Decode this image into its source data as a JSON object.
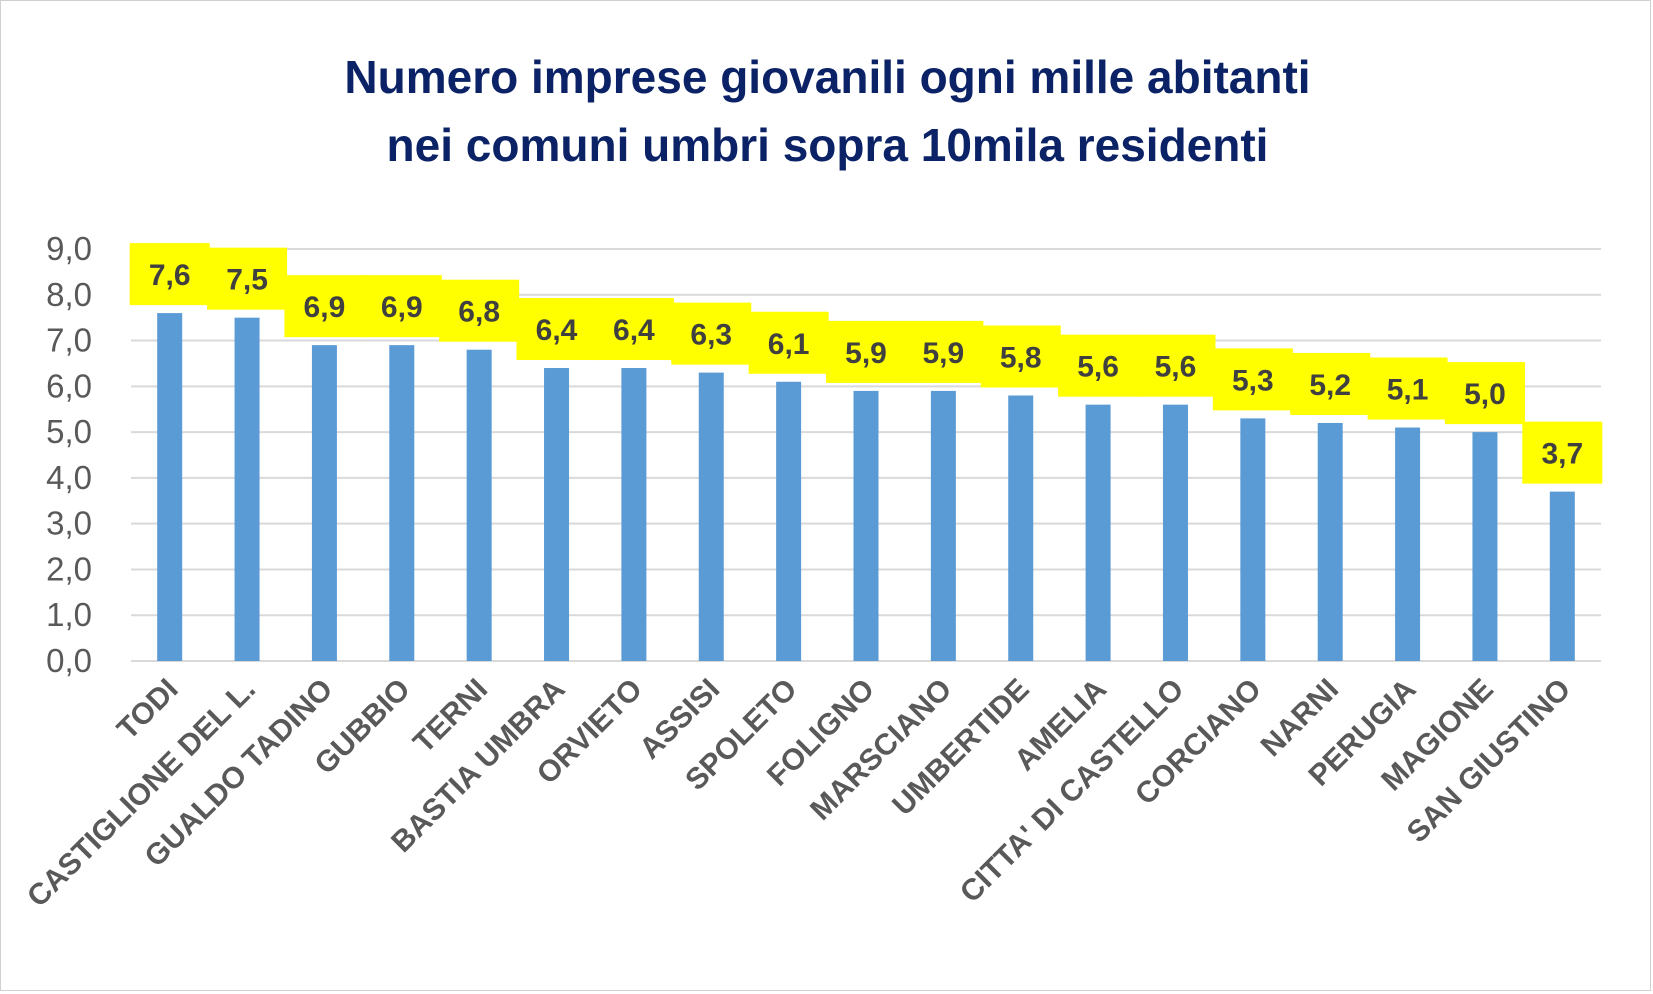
{
  "chart_data": {
    "type": "bar",
    "title_lines": [
      "Numero imprese giovanili ogni mille abitanti",
      "nei comuni umbri sopra 10mila residenti"
    ],
    "xlabel": "",
    "ylabel": "",
    "ylim": [
      0,
      9
    ],
    "yticks": [
      0,
      1,
      2,
      3,
      4,
      5,
      6,
      7,
      8,
      9
    ],
    "ytick_labels": [
      "0,0",
      "1,0",
      "2,0",
      "3,0",
      "4,0",
      "5,0",
      "6,0",
      "7,0",
      "8,0",
      "9,0"
    ],
    "grid": true,
    "legend": "none",
    "categories": [
      "TODI",
      "CASTIGLIONE DEL L.",
      "GUALDO TADINO",
      "GUBBIO",
      "TERNI",
      "BASTIA UMBRA",
      "ORVIETO",
      "ASSISI",
      "SPOLETO",
      "FOLIGNO",
      "MARSCIANO",
      "UMBERTIDE",
      "AMELIA",
      "CITTA' DI CASTELLO",
      "CORCIANO",
      "NARNI",
      "PERUGIA",
      "MAGIONE",
      "SAN GIUSTINO"
    ],
    "values": [
      7.6,
      7.5,
      6.9,
      6.9,
      6.8,
      6.4,
      6.4,
      6.3,
      6.1,
      5.9,
      5.9,
      5.8,
      5.6,
      5.6,
      5.3,
      5.2,
      5.1,
      5.0,
      3.7
    ],
    "data_labels": [
      "7,6",
      "7,5",
      "6,9",
      "6,9",
      "6,8",
      "6,4",
      "6,4",
      "6,3",
      "6,1",
      "5,9",
      "5,9",
      "5,8",
      "5,6",
      "5,6",
      "5,3",
      "5,2",
      "5,1",
      "5,0",
      "3,7"
    ],
    "colors": {
      "bar": "#5b9bd5",
      "label_background": "#ffff00",
      "title": "#0b2366",
      "grid": "#d9d9d9",
      "axis_text": "#595959"
    }
  }
}
